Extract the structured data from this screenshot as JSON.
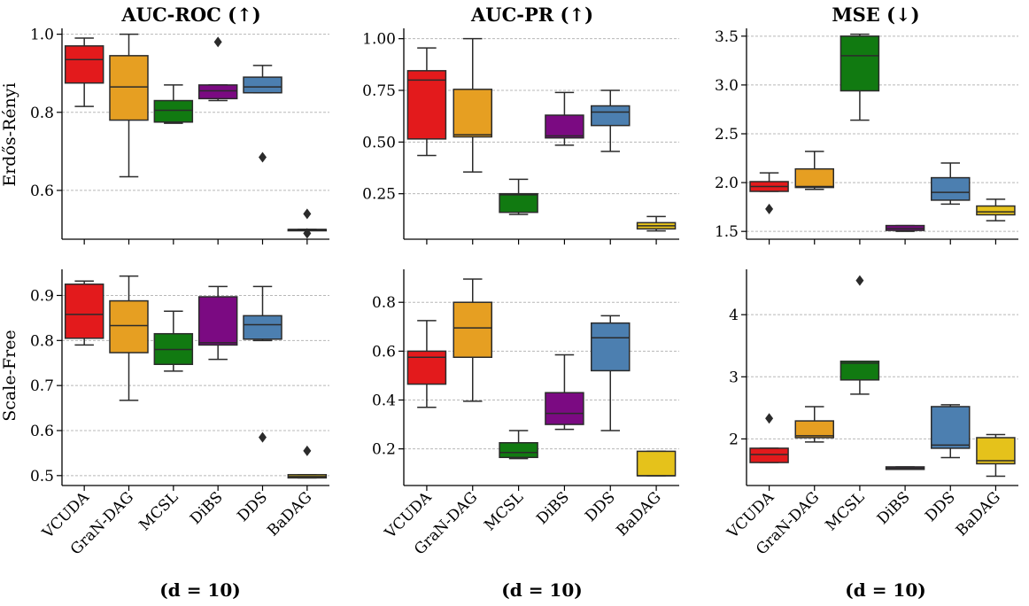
{
  "figure": {
    "column_titles": [
      "AUC-ROC (↑)",
      "AUC-PR (↑)",
      "MSE (↓)"
    ],
    "row_labels": [
      "Erdős-Rényi",
      "Scale-Free"
    ],
    "x_caption": "(d = 10)"
  },
  "colors": {
    "VCUDA": "#e31a1c",
    "GraN-DAG": "#e69f22",
    "MCSL": "#117a11",
    "DiBS": "#7b0a82",
    "DDS": "#4c7fb0",
    "BaDAG": "#e5c21b",
    "grid": "#b8b8b8",
    "edge": "#2b2b2b"
  },
  "chart_data": [
    {
      "type": "box",
      "metric": "AUC-ROC (↑)",
      "graph": "Erdős-Rényi",
      "categories": [
        "VCUDA",
        "GraN-DAG",
        "MCSL",
        "DiBS",
        "DDS",
        "BaDAG"
      ],
      "yticks": [
        0.6,
        0.8,
        1.0
      ],
      "ytick_labels": [
        "0.6",
        "0.8",
        "1.0"
      ],
      "ylim": [
        0.475,
        1.015
      ],
      "boxes": [
        {
          "name": "VCUDA",
          "whislo": 0.815,
          "q1": 0.875,
          "med": 0.935,
          "q3": 0.97,
          "whishi": 0.99,
          "fliers": []
        },
        {
          "name": "GraN-DAG",
          "whislo": 0.635,
          "q1": 0.78,
          "med": 0.865,
          "q3": 0.945,
          "whishi": 1.0,
          "fliers": []
        },
        {
          "name": "MCSL",
          "whislo": 0.772,
          "q1": 0.775,
          "med": 0.805,
          "q3": 0.83,
          "whishi": 0.87,
          "fliers": []
        },
        {
          "name": "DiBS",
          "whislo": 0.83,
          "q1": 0.835,
          "med": 0.855,
          "q3": 0.87,
          "whishi": 0.87,
          "fliers": [
            0.98
          ]
        },
        {
          "name": "DDS",
          "whislo": 0.85,
          "q1": 0.85,
          "med": 0.865,
          "q3": 0.89,
          "whishi": 0.92,
          "fliers": [
            0.685
          ]
        },
        {
          "name": "BaDAG",
          "whislo": 0.5,
          "q1": 0.5,
          "med": 0.5,
          "q3": 0.5,
          "whishi": 0.5,
          "fliers": [
            0.54,
            0.49
          ]
        }
      ]
    },
    {
      "type": "box",
      "metric": "AUC-PR (↑)",
      "graph": "Erdős-Rényi",
      "categories": [
        "VCUDA",
        "GraN-DAG",
        "MCSL",
        "DiBS",
        "DDS",
        "BaDAG"
      ],
      "yticks": [
        0.25,
        0.5,
        0.75,
        1.0
      ],
      "ytick_labels": [
        "0.25",
        "0.50",
        "0.75",
        "1.00"
      ],
      "ylim": [
        0.03,
        1.05
      ],
      "boxes": [
        {
          "name": "VCUDA",
          "whislo": 0.435,
          "q1": 0.515,
          "med": 0.8,
          "q3": 0.845,
          "whishi": 0.955,
          "fliers": []
        },
        {
          "name": "GraN-DAG",
          "whislo": 0.355,
          "q1": 0.525,
          "med": 0.535,
          "q3": 0.755,
          "whishi": 1.0,
          "fliers": []
        },
        {
          "name": "MCSL",
          "whislo": 0.15,
          "q1": 0.16,
          "med": 0.245,
          "q3": 0.25,
          "whishi": 0.32,
          "fliers": []
        },
        {
          "name": "DiBS",
          "whislo": 0.485,
          "q1": 0.52,
          "med": 0.53,
          "q3": 0.63,
          "whishi": 0.74,
          "fliers": []
        },
        {
          "name": "DDS",
          "whislo": 0.455,
          "q1": 0.58,
          "med": 0.645,
          "q3": 0.675,
          "whishi": 0.75,
          "fliers": []
        },
        {
          "name": "BaDAG",
          "whislo": 0.07,
          "q1": 0.08,
          "med": 0.095,
          "q3": 0.11,
          "whishi": 0.14,
          "fliers": []
        }
      ]
    },
    {
      "type": "box",
      "metric": "MSE (↓)",
      "graph": "Erdős-Rényi",
      "categories": [
        "VCUDA",
        "GraN-DAG",
        "MCSL",
        "DiBS",
        "DDS",
        "BaDAG"
      ],
      "yticks": [
        1.5,
        2.0,
        2.5,
        3.0,
        3.5
      ],
      "ytick_labels": [
        "1.5",
        "2.0",
        "2.5",
        "3.0",
        "3.5"
      ],
      "ylim": [
        1.42,
        3.58
      ],
      "boxes": [
        {
          "name": "VCUDA",
          "whislo": 1.91,
          "q1": 1.91,
          "med": 1.96,
          "q3": 2.01,
          "whishi": 2.1,
          "fliers": [
            1.73
          ]
        },
        {
          "name": "GraN-DAG",
          "whislo": 1.93,
          "q1": 1.95,
          "med": 1.96,
          "q3": 2.14,
          "whishi": 2.32,
          "fliers": []
        },
        {
          "name": "MCSL",
          "whislo": 2.64,
          "q1": 2.94,
          "med": 3.3,
          "q3": 3.5,
          "whishi": 3.52,
          "fliers": []
        },
        {
          "name": "DiBS",
          "whislo": 1.5,
          "q1": 1.51,
          "med": 1.53,
          "q3": 1.56,
          "whishi": 1.56,
          "fliers": []
        },
        {
          "name": "DDS",
          "whislo": 1.78,
          "q1": 1.82,
          "med": 1.9,
          "q3": 2.05,
          "whishi": 2.2,
          "fliers": []
        },
        {
          "name": "BaDAG",
          "whislo": 1.61,
          "q1": 1.67,
          "med": 1.7,
          "q3": 1.76,
          "whishi": 1.83,
          "fliers": []
        }
      ]
    },
    {
      "type": "box",
      "metric": "AUC-ROC (↑)",
      "graph": "Scale-Free",
      "categories": [
        "VCUDA",
        "GraN-DAG",
        "MCSL",
        "DiBS",
        "DDS",
        "BaDAG"
      ],
      "yticks": [
        0.5,
        0.6,
        0.7,
        0.8,
        0.9
      ],
      "ytick_labels": [
        "0.5",
        "0.6",
        "0.7",
        "0.8",
        "0.9"
      ],
      "ylim": [
        0.478,
        0.958
      ],
      "boxes": [
        {
          "name": "VCUDA",
          "whislo": 0.79,
          "q1": 0.805,
          "med": 0.858,
          "q3": 0.925,
          "whishi": 0.932,
          "fliers": []
        },
        {
          "name": "GraN-DAG",
          "whislo": 0.667,
          "q1": 0.773,
          "med": 0.833,
          "q3": 0.888,
          "whishi": 0.943,
          "fliers": []
        },
        {
          "name": "MCSL",
          "whislo": 0.732,
          "q1": 0.747,
          "med": 0.78,
          "q3": 0.815,
          "whishi": 0.865,
          "fliers": []
        },
        {
          "name": "DiBS",
          "whislo": 0.758,
          "q1": 0.79,
          "med": 0.795,
          "q3": 0.897,
          "whishi": 0.92,
          "fliers": []
        },
        {
          "name": "DDS",
          "whislo": 0.8,
          "q1": 0.803,
          "med": 0.835,
          "q3": 0.855,
          "whishi": 0.92,
          "fliers": [
            0.585
          ]
        },
        {
          "name": "BaDAG",
          "whislo": 0.495,
          "q1": 0.495,
          "med": 0.498,
          "q3": 0.502,
          "whishi": 0.502,
          "fliers": [
            0.555
          ]
        }
      ]
    },
    {
      "type": "box",
      "metric": "AUC-PR (↑)",
      "graph": "Scale-Free",
      "categories": [
        "VCUDA",
        "GraN-DAG",
        "MCSL",
        "DiBS",
        "DDS",
        "BaDAG"
      ],
      "yticks": [
        0.2,
        0.4,
        0.6,
        0.8
      ],
      "ytick_labels": [
        "0.2",
        "0.4",
        "0.6",
        "0.8"
      ],
      "ylim": [
        0.05,
        0.935
      ],
      "boxes": [
        {
          "name": "VCUDA",
          "whislo": 0.37,
          "q1": 0.465,
          "med": 0.575,
          "q3": 0.6,
          "whishi": 0.725,
          "fliers": []
        },
        {
          "name": "GraN-DAG",
          "whislo": 0.395,
          "q1": 0.575,
          "med": 0.695,
          "q3": 0.8,
          "whishi": 0.895,
          "fliers": []
        },
        {
          "name": "MCSL",
          "whislo": 0.16,
          "q1": 0.165,
          "med": 0.185,
          "q3": 0.225,
          "whishi": 0.275,
          "fliers": []
        },
        {
          "name": "DiBS",
          "whislo": 0.28,
          "q1": 0.3,
          "med": 0.345,
          "q3": 0.43,
          "whishi": 0.585,
          "fliers": []
        },
        {
          "name": "DDS",
          "whislo": 0.275,
          "q1": 0.52,
          "med": 0.655,
          "q3": 0.715,
          "whishi": 0.745,
          "fliers": []
        },
        {
          "name": "BaDAG",
          "whislo": 0.09,
          "q1": 0.09,
          "med": 0.09,
          "q3": 0.19,
          "whishi": 0.19,
          "fliers": []
        }
      ]
    },
    {
      "type": "box",
      "metric": "MSE (↓)",
      "graph": "Scale-Free",
      "categories": [
        "VCUDA",
        "GraN-DAG",
        "MCSL",
        "DiBS",
        "DDS",
        "BaDAG"
      ],
      "yticks": [
        2,
        3,
        4
      ],
      "ytick_labels": [
        "2",
        "3",
        "4"
      ],
      "ylim": [
        1.25,
        4.73
      ],
      "boxes": [
        {
          "name": "VCUDA",
          "whislo": 1.62,
          "q1": 1.62,
          "med": 1.75,
          "q3": 1.85,
          "whishi": 1.85,
          "fliers": [
            2.33
          ]
        },
        {
          "name": "GraN-DAG",
          "whislo": 1.95,
          "q1": 2.02,
          "med": 2.05,
          "q3": 2.29,
          "whishi": 2.52,
          "fliers": []
        },
        {
          "name": "MCSL",
          "whislo": 2.72,
          "q1": 2.95,
          "med": 3.22,
          "q3": 3.25,
          "whishi": 3.25,
          "fliers": [
            4.55
          ]
        },
        {
          "name": "DiBS",
          "whislo": 1.51,
          "q1": 1.51,
          "med": 1.53,
          "q3": 1.55,
          "whishi": 1.55,
          "fliers": []
        },
        {
          "name": "DDS",
          "whislo": 1.7,
          "q1": 1.85,
          "med": 1.9,
          "q3": 2.52,
          "whishi": 2.55,
          "fliers": []
        },
        {
          "name": "BaDAG",
          "whislo": 1.4,
          "q1": 1.6,
          "med": 1.65,
          "q3": 2.02,
          "whishi": 2.07,
          "fliers": []
        }
      ]
    }
  ]
}
